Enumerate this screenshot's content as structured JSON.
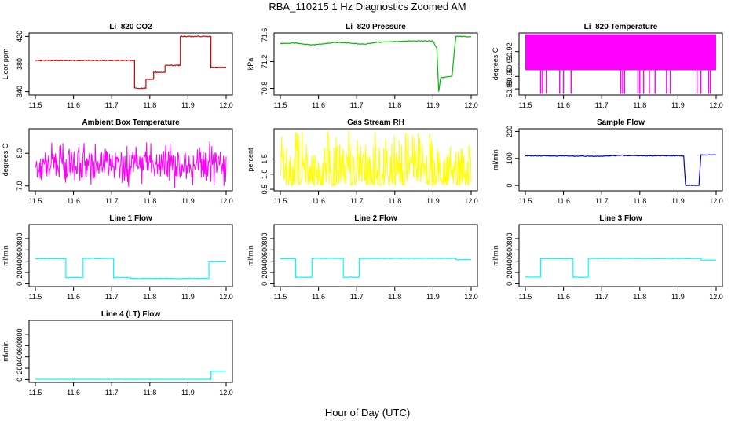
{
  "page": {
    "title": "RBA_110215  1 Hz Diagnostics Zoomed AM",
    "xlabel": "Hour of Day (UTC)"
  },
  "chart_data": [
    {
      "id": "co2",
      "type": "line",
      "title": "Li–820 CO2",
      "ylabel": "Licor ppm",
      "color": "#dd0000",
      "xlim": [
        11.5,
        12.0
      ],
      "ylim": [
        335,
        425
      ],
      "xticks": [
        "11.5",
        "11.6",
        "11.7",
        "11.8",
        "11.9",
        "12.0"
      ],
      "yticks": [
        "340",
        "380",
        "420"
      ],
      "ytick_values": [
        340,
        380,
        420
      ],
      "series": [
        {
          "style": "step",
          "noise": 0.6,
          "x": [
            11.5,
            11.76,
            11.76,
            11.79,
            11.79,
            11.81,
            11.81,
            11.84,
            11.84,
            11.88,
            11.88,
            11.96,
            11.96,
            12.0
          ],
          "y": [
            385,
            385,
            345,
            345,
            358,
            358,
            368,
            368,
            378,
            378,
            420,
            420,
            375,
            375
          ]
        }
      ]
    },
    {
      "id": "pressure",
      "type": "line",
      "title": "Li–820 Pressure",
      "ylabel": "kPa",
      "color": "#00bb00",
      "xlim": [
        11.5,
        12.0
      ],
      "ylim": [
        70.7,
        71.63
      ],
      "xticks": [
        "11.5",
        "11.6",
        "11.7",
        "11.8",
        "11.9",
        "12.0"
      ],
      "yticks": [
        "70.8",
        "71.2",
        "71.6"
      ],
      "ytick_values": [
        70.8,
        71.2,
        71.6
      ],
      "series": [
        {
          "style": "line",
          "noise": 0.005,
          "x": [
            11.5,
            11.54,
            11.58,
            11.6,
            11.65,
            11.7,
            11.72,
            11.75,
            11.8,
            11.85,
            11.9,
            11.91,
            11.915,
            11.92,
            11.95,
            11.955,
            11.96,
            11.97,
            12.0
          ],
          "y": [
            71.47,
            71.48,
            71.45,
            71.46,
            71.49,
            71.47,
            71.46,
            71.49,
            71.5,
            71.51,
            71.51,
            71.4,
            70.75,
            70.96,
            70.98,
            71.3,
            71.58,
            71.58,
            71.57
          ]
        }
      ]
    },
    {
      "id": "temperature",
      "type": "line",
      "title": "Li–820 Temperature",
      "ylabel": "degrees C",
      "color": "#ff00ff",
      "xlim": [
        11.5,
        12.0
      ],
      "ylim": [
        50.885,
        50.935
      ],
      "xticks": [
        "11.5",
        "11.6",
        "11.7",
        "11.8",
        "11.9",
        "12.0"
      ],
      "yticks": [
        "50.89",
        "50.90",
        "50.91",
        "50.92"
      ],
      "ytick_values": [
        50.89,
        50.9,
        50.91,
        50.92
      ],
      "series": [
        {
          "style": "band",
          "low": 50.905,
          "high": 50.934,
          "spike_low": 50.886,
          "spikes": [
            11.54,
            11.545,
            11.555,
            11.59,
            11.6,
            11.62,
            11.75,
            11.755,
            11.76,
            11.795,
            11.8,
            11.81,
            11.825,
            11.84,
            11.87,
            11.88,
            11.95,
            11.96,
            11.98,
            11.985
          ]
        }
      ]
    },
    {
      "id": "ambient",
      "type": "line",
      "title": "Ambient Box Temperature",
      "ylabel": "degrees C",
      "color": "#ff00ff",
      "xlim": [
        11.5,
        12.0
      ],
      "ylim": [
        6.85,
        8.75
      ],
      "xticks": [
        "11.5",
        "11.6",
        "11.7",
        "11.8",
        "11.9",
        "12.0"
      ],
      "yticks": [
        "7.0",
        "8.0"
      ],
      "ytick_values": [
        7.0,
        8.0
      ],
      "series": [
        {
          "style": "noise",
          "mean": 7.65,
          "amp": 0.42,
          "seed": 11
        }
      ]
    },
    {
      "id": "rh",
      "type": "line",
      "title": "Gas Stream RH",
      "ylabel": "percent",
      "color": "#ffff00",
      "xlim": [
        11.5,
        12.0
      ],
      "ylim": [
        0.45,
        2.5
      ],
      "xticks": [
        "11.5",
        "11.6",
        "11.7",
        "11.8",
        "11.9",
        "12.0"
      ],
      "yticks": [
        "0.5",
        "1.0",
        "1.5"
      ],
      "ytick_values": [
        0.5,
        1.0,
        1.5
      ],
      "series": [
        {
          "style": "noise_up",
          "base": 0.62,
          "amp": 1.4,
          "seed": 29
        }
      ]
    },
    {
      "id": "sample_flow",
      "type": "line",
      "title": "Sample Flow",
      "ylabel": "ml/min",
      "color": "#0000cc",
      "xlim": [
        11.5,
        12.0
      ],
      "ylim": [
        -20,
        210
      ],
      "xticks": [
        "11.5",
        "11.6",
        "11.7",
        "11.8",
        "11.9",
        "12.0"
      ],
      "yticks": [
        "0",
        "100",
        "200"
      ],
      "ytick_values": [
        0,
        100,
        200
      ],
      "series": [
        {
          "style": "step",
          "noise": 1.2,
          "x": [
            11.5,
            11.7,
            11.76,
            11.76,
            11.9,
            11.915,
            11.92,
            11.955,
            11.96,
            12.0
          ],
          "y": [
            110,
            108,
            112,
            110,
            110,
            108,
            0,
            0,
            113,
            113
          ]
        }
      ]
    },
    {
      "id": "line1",
      "type": "line",
      "title": "Line 1 Flow",
      "ylabel": "ml/min",
      "color": "#00ffff",
      "xlim": [
        11.5,
        12.0
      ],
      "ylim": [
        -50,
        1050
      ],
      "xticks": [
        "11.5",
        "11.6",
        "11.7",
        "11.8",
        "11.9",
        "12.0"
      ],
      "yticks": [
        "0",
        "200",
        "400",
        "600",
        "800"
      ],
      "ytick_values": [
        0,
        200,
        400,
        600,
        800
      ],
      "series": [
        {
          "style": "step",
          "noise": 6,
          "x": [
            11.5,
            11.58,
            11.58,
            11.625,
            11.625,
            11.705,
            11.705,
            11.75,
            11.75,
            11.955,
            11.955,
            12.0
          ],
          "y": [
            445,
            445,
            110,
            110,
            450,
            450,
            110,
            110,
            95,
            95,
            390,
            390
          ]
        }
      ]
    },
    {
      "id": "line2",
      "type": "line",
      "title": "Line 2 Flow",
      "ylabel": "ml/min",
      "color": "#00ffff",
      "xlim": [
        11.5,
        12.0
      ],
      "ylim": [
        -50,
        1050
      ],
      "xticks": [
        "11.5",
        "11.6",
        "11.7",
        "11.8",
        "11.9",
        "12.0"
      ],
      "yticks": [
        "0",
        "200",
        "400",
        "600",
        "800"
      ],
      "ytick_values": [
        0,
        200,
        400,
        600,
        800
      ],
      "series": [
        {
          "style": "step",
          "noise": 5,
          "x": [
            11.5,
            11.54,
            11.54,
            11.583,
            11.583,
            11.665,
            11.665,
            11.707,
            11.707,
            11.96,
            11.96,
            12.0
          ],
          "y": [
            445,
            445,
            115,
            115,
            450,
            450,
            115,
            115,
            450,
            450,
            430,
            430
          ]
        }
      ]
    },
    {
      "id": "line3",
      "type": "line",
      "title": "Line 3 Flow",
      "ylabel": "ml/min",
      "color": "#00ffff",
      "xlim": [
        11.5,
        12.0
      ],
      "ylim": [
        -50,
        1050
      ],
      "xticks": [
        "11.5",
        "11.6",
        "11.7",
        "11.8",
        "11.9",
        "12.0"
      ],
      "yticks": [
        "0",
        "200",
        "400",
        "600",
        "800"
      ],
      "ytick_values": [
        0,
        200,
        400,
        600,
        800
      ],
      "series": [
        {
          "style": "step",
          "noise": 5,
          "x": [
            11.5,
            11.54,
            11.54,
            11.625,
            11.625,
            11.665,
            11.665,
            11.96,
            11.96,
            12.0
          ],
          "y": [
            120,
            120,
            445,
            445,
            115,
            115,
            448,
            448,
            420,
            420
          ]
        }
      ]
    },
    {
      "id": "line4",
      "type": "line",
      "title": "Line 4 (LT) Flow",
      "ylabel": "ml/min",
      "color": "#00ffff",
      "xlim": [
        11.5,
        12.0
      ],
      "ylim": [
        -50,
        1050
      ],
      "xticks": [
        "11.5",
        "11.6",
        "11.7",
        "11.8",
        "11.9",
        "12.0"
      ],
      "yticks": [
        "0",
        "200",
        "400",
        "600",
        "800"
      ],
      "ytick_values": [
        0,
        200,
        400,
        600,
        800
      ],
      "series": [
        {
          "style": "step",
          "noise": 2,
          "x": [
            11.5,
            11.96,
            11.96,
            12.0
          ],
          "y": [
            5,
            5,
            150,
            150
          ]
        }
      ]
    }
  ]
}
